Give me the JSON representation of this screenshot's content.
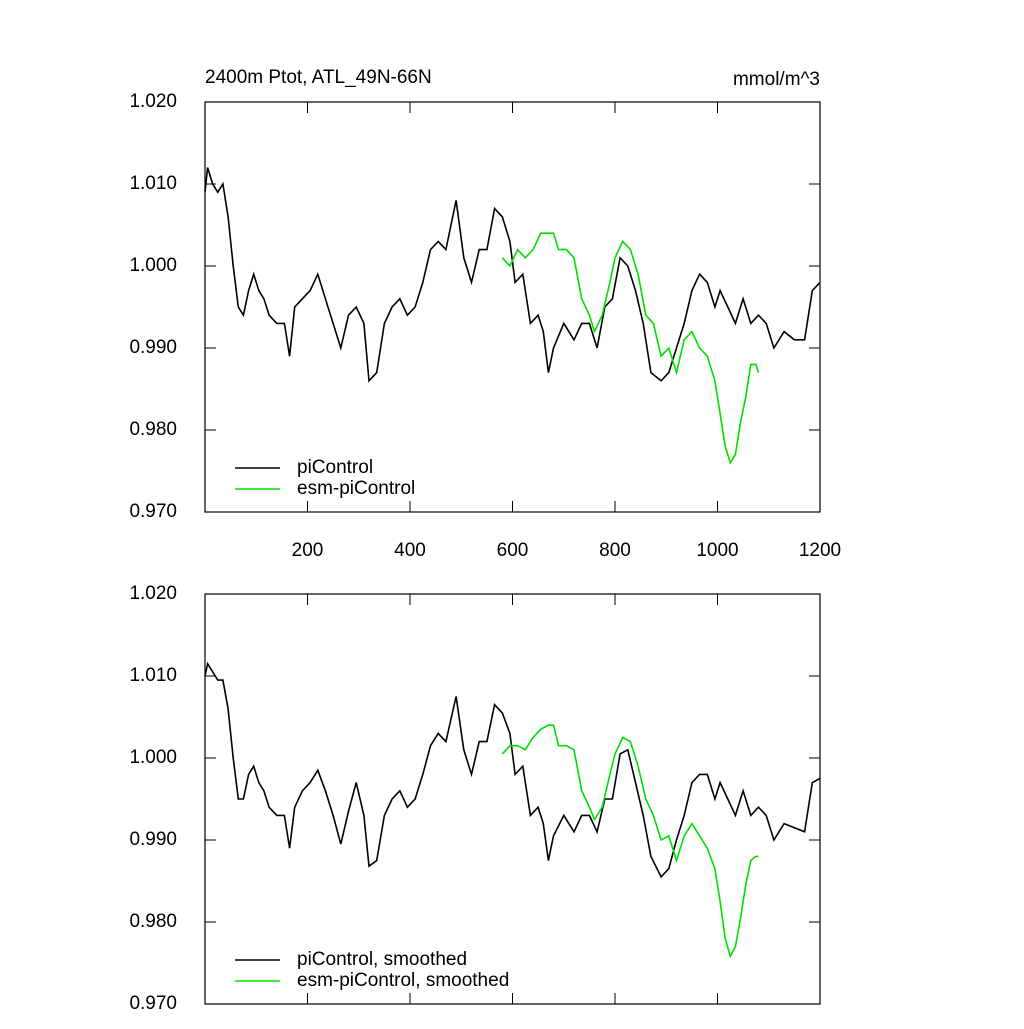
{
  "chart_data": [
    {
      "type": "line",
      "title": "2400m Ptot, ATL_49N-66N",
      "units": "mmol/m^3",
      "xlim": [
        0,
        1200
      ],
      "xticks": [
        200,
        400,
        600,
        800,
        1000,
        1200
      ],
      "ylim": [
        0.97,
        1.02
      ],
      "yticks": [
        {
          "value": 0.97,
          "label": "0.970"
        },
        {
          "value": 0.98,
          "label": "0.980"
        },
        {
          "value": 0.99,
          "label": "0.990"
        },
        {
          "value": 1.0,
          "label": "1.000"
        },
        {
          "value": 1.01,
          "label": "1.010"
        },
        {
          "value": 1.02,
          "label": "1.020"
        }
      ],
      "legend": "lower left",
      "series": [
        {
          "name": "piControl",
          "color": "#000000",
          "x": [
            0,
            5,
            15,
            25,
            35,
            45,
            55,
            65,
            75,
            85,
            95,
            105,
            115,
            125,
            140,
            155,
            165,
            175,
            190,
            205,
            220,
            235,
            250,
            265,
            280,
            295,
            310,
            320,
            335,
            350,
            365,
            380,
            395,
            410,
            425,
            440,
            455,
            470,
            490,
            505,
            520,
            535,
            550,
            565,
            580,
            595,
            605,
            620,
            635,
            650,
            660,
            670,
            680,
            700,
            720,
            735,
            750,
            765,
            780,
            795,
            810,
            825,
            840,
            855,
            870,
            890,
            905,
            920,
            935,
            950,
            965,
            980,
            995,
            1005,
            1020,
            1035,
            1050,
            1065,
            1080,
            1095,
            1110,
            1130,
            1150,
            1170,
            1185,
            1200
          ],
          "values": [
            1.009,
            1.012,
            1.01,
            1.009,
            1.01,
            1.006,
            1.0,
            0.995,
            0.994,
            0.997,
            0.999,
            0.997,
            0.996,
            0.994,
            0.993,
            0.993,
            0.989,
            0.995,
            0.996,
            0.997,
            0.999,
            0.996,
            0.993,
            0.99,
            0.994,
            0.995,
            0.993,
            0.986,
            0.987,
            0.993,
            0.995,
            0.996,
            0.994,
            0.995,
            0.998,
            1.002,
            1.003,
            1.002,
            1.008,
            1.001,
            0.998,
            1.002,
            1.002,
            1.007,
            1.006,
            1.003,
            0.998,
            0.999,
            0.993,
            0.994,
            0.992,
            0.987,
            0.99,
            0.993,
            0.991,
            0.993,
            0.993,
            0.99,
            0.995,
            0.996,
            1.001,
            1.0,
            0.997,
            0.993,
            0.987,
            0.986,
            0.987,
            0.99,
            0.993,
            0.997,
            0.999,
            0.998,
            0.995,
            0.997,
            0.995,
            0.993,
            0.996,
            0.993,
            0.994,
            0.993,
            0.99,
            0.992,
            0.991,
            0.991,
            0.997,
            0.998
          ]
        },
        {
          "name": "esm-piControl",
          "color": "#00e000",
          "x": [
            580,
            595,
            610,
            625,
            640,
            655,
            670,
            680,
            690,
            705,
            720,
            735,
            750,
            760,
            775,
            790,
            800,
            815,
            830,
            845,
            860,
            875,
            890,
            905,
            920,
            935,
            950,
            965,
            980,
            995,
            1005,
            1015,
            1025,
            1035,
            1045,
            1055,
            1065,
            1075,
            1080
          ],
          "values": [
            1.001,
            1.0,
            1.002,
            1.001,
            1.002,
            1.004,
            1.004,
            1.004,
            1.002,
            1.002,
            1.001,
            0.996,
            0.994,
            0.992,
            0.994,
            0.998,
            1.001,
            1.003,
            1.002,
            0.999,
            0.994,
            0.993,
            0.989,
            0.99,
            0.987,
            0.991,
            0.992,
            0.99,
            0.989,
            0.986,
            0.982,
            0.978,
            0.976,
            0.977,
            0.981,
            0.984,
            0.988,
            0.988,
            0.987
          ]
        }
      ]
    },
    {
      "type": "line",
      "xlim": [
        0,
        1200
      ],
      "ylim": [
        0.97,
        1.02
      ],
      "yticks": [
        {
          "value": 0.97,
          "label": "0.970"
        },
        {
          "value": 0.98,
          "label": "0.980"
        },
        {
          "value": 0.99,
          "label": "0.990"
        },
        {
          "value": 1.0,
          "label": "1.000"
        },
        {
          "value": 1.01,
          "label": "1.010"
        },
        {
          "value": 1.02,
          "label": "1.020"
        }
      ],
      "legend": "lower left",
      "series": [
        {
          "name": "piControl, smoothed",
          "color": "#000000",
          "x": [
            0,
            5,
            15,
            25,
            35,
            45,
            55,
            65,
            75,
            85,
            95,
            105,
            115,
            125,
            140,
            155,
            165,
            175,
            190,
            205,
            220,
            235,
            250,
            265,
            280,
            295,
            310,
            320,
            335,
            350,
            365,
            380,
            395,
            410,
            425,
            440,
            455,
            470,
            490,
            505,
            520,
            535,
            550,
            565,
            580,
            595,
            605,
            620,
            635,
            650,
            660,
            670,
            680,
            700,
            720,
            735,
            750,
            765,
            780,
            795,
            810,
            825,
            840,
            855,
            870,
            890,
            905,
            920,
            935,
            950,
            965,
            980,
            995,
            1005,
            1020,
            1035,
            1050,
            1065,
            1080,
            1095,
            1110,
            1130,
            1150,
            1170,
            1185,
            1200
          ],
          "values": [
            1.01,
            1.0115,
            1.0105,
            1.0095,
            1.0095,
            1.006,
            1.0,
            0.995,
            0.995,
            0.998,
            0.999,
            0.997,
            0.996,
            0.994,
            0.993,
            0.993,
            0.989,
            0.994,
            0.996,
            0.997,
            0.9985,
            0.996,
            0.993,
            0.9895,
            0.9935,
            0.997,
            0.993,
            0.9868,
            0.9875,
            0.993,
            0.995,
            0.996,
            0.994,
            0.995,
            0.998,
            1.0015,
            1.003,
            1.002,
            1.0075,
            1.001,
            0.998,
            1.002,
            1.002,
            1.0065,
            1.0055,
            1.003,
            0.998,
            0.999,
            0.993,
            0.994,
            0.992,
            0.9875,
            0.9905,
            0.993,
            0.991,
            0.993,
            0.993,
            0.991,
            0.995,
            0.995,
            1.0005,
            1.001,
            0.997,
            0.993,
            0.988,
            0.9855,
            0.9865,
            0.99,
            0.993,
            0.997,
            0.998,
            0.998,
            0.995,
            0.997,
            0.995,
            0.993,
            0.996,
            0.993,
            0.994,
            0.993,
            0.99,
            0.992,
            0.9915,
            0.991,
            0.997,
            0.9975
          ]
        },
        {
          "name": "esm-piControl, smoothed",
          "color": "#00e000",
          "x": [
            580,
            595,
            610,
            625,
            640,
            655,
            670,
            680,
            690,
            705,
            720,
            735,
            750,
            760,
            775,
            790,
            800,
            815,
            830,
            845,
            860,
            875,
            890,
            905,
            920,
            935,
            950,
            965,
            980,
            995,
            1005,
            1015,
            1025,
            1035,
            1045,
            1055,
            1065,
            1075,
            1080
          ],
          "values": [
            1.0005,
            1.0015,
            1.0015,
            1.001,
            1.0025,
            1.0035,
            1.004,
            1.004,
            1.0015,
            1.0015,
            1.001,
            0.996,
            0.994,
            0.9925,
            0.994,
            0.998,
            1.0005,
            1.0025,
            1.002,
            0.999,
            0.995,
            0.993,
            0.99,
            0.9905,
            0.9875,
            0.9905,
            0.992,
            0.9905,
            0.989,
            0.9865,
            0.9825,
            0.978,
            0.9758,
            0.977,
            0.9805,
            0.9845,
            0.9875,
            0.988,
            0.988
          ]
        }
      ]
    }
  ]
}
